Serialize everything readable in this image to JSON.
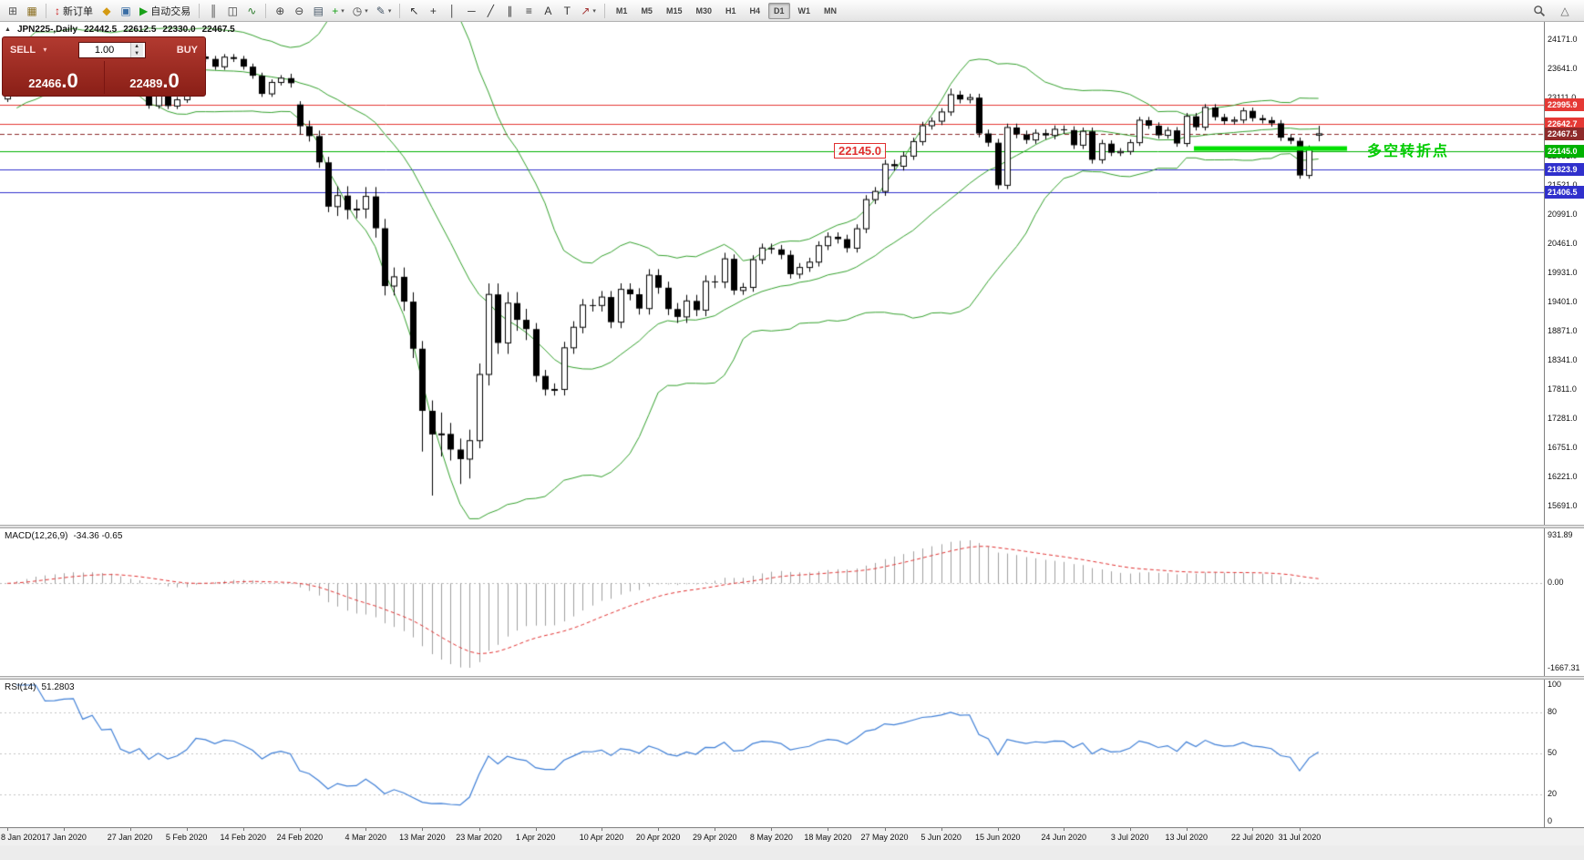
{
  "toolbar": {
    "groups": [
      {
        "items": [
          {
            "name": "new-chart-button",
            "glyph": "⊞",
            "color": "#555555"
          },
          {
            "name": "profiles-button",
            "glyph": "▦",
            "color": "#8a6d1f"
          }
        ]
      },
      {
        "items": [
          {
            "name": "new-order-button",
            "glyph": "↕",
            "color": "#cc2222",
            "label": "新订单"
          },
          {
            "name": "metaeditor-button",
            "glyph": "◆",
            "color": "#d49a12"
          },
          {
            "name": "terminal-button",
            "glyph": "▣",
            "color": "#3a6ea5"
          },
          {
            "name": "autotrading-button",
            "glyph": "▶",
            "color": "#18a018",
            "label": "自动交易"
          }
        ]
      },
      {
        "items": [
          {
            "name": "bar-chart-mode-button",
            "glyph": "║",
            "color": "#444444"
          },
          {
            "name": "candlestick-mode-button",
            "glyph": "◫",
            "color": "#444444"
          },
          {
            "name": "line-chart-mode-button",
            "glyph": "∿",
            "color": "#2a7a2a"
          }
        ]
      },
      {
        "items": [
          {
            "name": "zoom-in-button",
            "glyph": "⊕",
            "color": "#444444"
          },
          {
            "name": "zoom-out-button",
            "glyph": "⊖",
            "color": "#444444"
          },
          {
            "name": "tile-windows-button",
            "glyph": "▤",
            "color": "#445566"
          },
          {
            "name": "indicators-button",
            "glyph": "+",
            "color": "#18a018",
            "caret": true
          },
          {
            "name": "periods-button",
            "glyph": "◷",
            "color": "#444444",
            "caret": true
          },
          {
            "name": "templates-button",
            "glyph": "✎",
            "color": "#445566",
            "caret": true
          }
        ]
      },
      {
        "items": [
          {
            "name": "cursor-tool-button",
            "glyph": "↖",
            "color": "#333333"
          },
          {
            "name": "crosshair-tool-button",
            "glyph": "+",
            "color": "#333333"
          },
          {
            "name": "vertical-line-tool-button",
            "glyph": "│",
            "color": "#333333"
          },
          {
            "name": "horizontal-line-tool-button",
            "glyph": "─",
            "color": "#333333"
          },
          {
            "name": "trendline-tool-button",
            "glyph": "╱",
            "color": "#333333"
          },
          {
            "name": "channel-tool-button",
            "glyph": "∥",
            "color": "#333333"
          },
          {
            "name": "fibonacci-tool-button",
            "glyph": "≡",
            "color": "#333333"
          },
          {
            "name": "text-tool-button",
            "glyph": "A",
            "color": "#333333"
          },
          {
            "name": "label-tool-button",
            "glyph": "T",
            "color": "#333333"
          },
          {
            "name": "arrows-tool-button",
            "glyph": "↗",
            "color": "#a33333",
            "caret": true
          }
        ]
      }
    ],
    "timeframes": [
      "M1",
      "M5",
      "M15",
      "M30",
      "H1",
      "H4",
      "D1",
      "W1",
      "MN"
    ],
    "active_timeframe": "D1",
    "right": {
      "shift_glyph": "△"
    }
  },
  "chart": {
    "collapse_glyph": "▲",
    "title": {
      "symbol_period": "JPN225-,Daily",
      "open": "22442.5",
      "high": "22612.5",
      "low": "22330.0",
      "close": "22467.5"
    },
    "trade_panel": {
      "sell_label": "SELL",
      "buy_label": "BUY",
      "volume": "1.00",
      "caret": "▾",
      "spin_up": "▲",
      "spin_down": "▼",
      "sell_price_main": "22466",
      "sell_price_frac": ".0",
      "buy_price_main": "22489",
      "buy_price_frac": ".0"
    },
    "price_axis": [
      "24171.0",
      "23641.0",
      "23111.0",
      "22581.0",
      "22051.0",
      "21521.0",
      "20991.0",
      "20461.0",
      "19931.0",
      "19401.0",
      "18871.0",
      "18341.0",
      "17811.0",
      "17281.0",
      "16751.0",
      "16221.0",
      "15691.0"
    ],
    "price_axis_top": 24171,
    "price_axis_step": 530,
    "hlines": [
      {
        "name": "resistance-line-1",
        "price": 22995.9,
        "label": "22995.9",
        "color": "#e53935",
        "style": "solid"
      },
      {
        "name": "resistance-line-2",
        "price": 22642.7,
        "label": "22642.7",
        "color": "#e53935",
        "style": "solid"
      },
      {
        "name": "bid-price-line",
        "price": 22467.5,
        "label": "22467.5",
        "color": "#8e2a2a",
        "style": "dashed"
      },
      {
        "name": "pivot-level-line",
        "price": 22145.0,
        "label": "22145.0",
        "color": "#00b200",
        "style": "solid"
      },
      {
        "name": "support-line-1",
        "price": 21823.9,
        "label": "21823.9",
        "color": "#3030cc",
        "style": "solid"
      },
      {
        "name": "support-line-2",
        "price": 21406.5,
        "label": "21406.5",
        "color": "#3030cc",
        "style": "solid"
      }
    ],
    "pivot_segment": {
      "price": 22200,
      "color": "#00e000"
    },
    "annotations": {
      "price_note": "22145.0",
      "pivot_note": "多空转折点"
    },
    "indicators": {
      "bollinger_color": "#33a02c"
    },
    "x_axis": [
      {
        "t": "8 Jan 2020",
        "i": 0
      },
      {
        "t": "17 Jan 2020",
        "i": 6
      },
      {
        "t": "27 Jan 2020",
        "i": 13
      },
      {
        "t": "5 Feb 2020",
        "i": 19
      },
      {
        "t": "14 Feb 2020",
        "i": 25
      },
      {
        "t": "24 Feb 2020",
        "i": 31
      },
      {
        "t": "4 Mar 2020",
        "i": 38
      },
      {
        "t": "13 Mar 2020",
        "i": 44
      },
      {
        "t": "23 Mar 2020",
        "i": 50
      },
      {
        "t": "1 Apr 2020",
        "i": 56
      },
      {
        "t": "10 Apr 2020",
        "i": 63
      },
      {
        "t": "20 Apr 2020",
        "i": 69
      },
      {
        "t": "29 Apr 2020",
        "i": 75
      },
      {
        "t": "8 May 2020",
        "i": 81
      },
      {
        "t": "18 May 2020",
        "i": 87
      },
      {
        "t": "27 May 2020",
        "i": 93
      },
      {
        "t": "5 Jun 2020",
        "i": 99
      },
      {
        "t": "15 Jun 2020",
        "i": 105
      },
      {
        "t": "24 Jun 2020",
        "i": 112
      },
      {
        "t": "3 Jul 2020",
        "i": 119
      },
      {
        "t": "13 Jul 2020",
        "i": 125
      },
      {
        "t": "22 Jul 2020",
        "i": 132
      },
      {
        "t": "31 Jul 2020",
        "i": 137
      }
    ]
  },
  "macd": {
    "label": "MACD(12,26,9)",
    "values": "-34.36 -0.65",
    "axis": [
      "931.89",
      "0.00",
      "-1667.31"
    ],
    "range": {
      "max": 931.89,
      "min": -1667.31
    },
    "histogram_color": "#9f9f9f",
    "signal_color": "#e03030"
  },
  "rsi": {
    "label": "RSI(14)",
    "value": "51.2803",
    "axis": [
      {
        "v": 100,
        "t": "100"
      },
      {
        "v": 80,
        "t": "80"
      },
      {
        "v": 50,
        "t": "50"
      },
      {
        "v": 20,
        "t": "20"
      },
      {
        "v": 0,
        "t": "0"
      }
    ],
    "levels": [
      80,
      50,
      20
    ],
    "line_color": "#3f7fd6"
  },
  "chart_data": {
    "type": "candlestick",
    "symbol": "JPN225-",
    "period": "Daily",
    "indicators": [
      "Bollinger Bands(20,2)",
      "MACD(12,26,9)",
      "RSI(14)"
    ],
    "ohlc_current": {
      "open": 22442.5,
      "high": 22612.5,
      "low": 22330.0,
      "close": 22467.5
    },
    "candles": [
      [
        23100,
        23259,
        23045,
        23204
      ],
      [
        23204,
        23795,
        23149,
        23740
      ],
      [
        23740,
        23906,
        23685,
        23851
      ],
      [
        23851,
        24080,
        23796,
        24025
      ],
      [
        24025,
        24080,
        23862,
        23917
      ],
      [
        23917,
        23988,
        23862,
        23933
      ],
      [
        23933,
        24096,
        23878,
        24041
      ],
      [
        24041,
        24139,
        23986,
        24084
      ],
      [
        24084,
        24139,
        23809,
        23864
      ],
      [
        23864,
        24086,
        23809,
        24031
      ],
      [
        24031,
        24086,
        23740,
        23795
      ],
      [
        23795,
        23882,
        23740,
        23827
      ],
      [
        23827,
        23882,
        23289,
        23344
      ],
      [
        23344,
        23399,
        23161,
        23216
      ],
      [
        23216,
        23434,
        23161,
        23379
      ],
      [
        23379,
        23434,
        22923,
        22978
      ],
      [
        22978,
        23260,
        22923,
        23205
      ],
      [
        23205,
        23260,
        22917,
        22972
      ],
      [
        22972,
        23140,
        22917,
        23085
      ],
      [
        23085,
        23375,
        23030,
        23320
      ],
      [
        23320,
        23928,
        23265,
        23873
      ],
      [
        23873,
        23928,
        23773,
        23828
      ],
      [
        23828,
        23883,
        23631,
        23686
      ],
      [
        23686,
        23916,
        23631,
        23861
      ],
      [
        23861,
        23916,
        23773,
        23828
      ],
      [
        23828,
        23883,
        23633,
        23688
      ],
      [
        23688,
        23743,
        23468,
        23523
      ],
      [
        23523,
        23578,
        23138,
        23193
      ],
      [
        23193,
        23456,
        23138,
        23401
      ],
      [
        23401,
        23534,
        23346,
        23479
      ],
      [
        23479,
        23559,
        23307,
        23387
      ],
      [
        23000,
        23060,
        22455,
        22605
      ],
      [
        22605,
        22705,
        22326,
        22426
      ],
      [
        22426,
        22526,
        21848,
        21948
      ],
      [
        21948,
        22048,
        21043,
        21143
      ],
      [
        21143,
        21514,
        20973,
        21344
      ],
      [
        21344,
        21514,
        20913,
        21083
      ],
      [
        21083,
        21270,
        20930,
        21100
      ],
      [
        21100,
        21499,
        20930,
        21329
      ],
      [
        21329,
        21499,
        20580,
        20750
      ],
      [
        20750,
        20920,
        19529,
        19699
      ],
      [
        19699,
        20037,
        19529,
        19867
      ],
      [
        19867,
        20037,
        19246,
        19416
      ],
      [
        19416,
        19586,
        18390,
        18560
      ],
      [
        18560,
        18700,
        16690,
        17431
      ],
      [
        17431,
        17620,
        15890,
        17002
      ],
      [
        17002,
        17400,
        16600,
        17011
      ],
      [
        17011,
        17211,
        16527,
        16727
      ],
      [
        16727,
        16927,
        16100,
        16553
      ],
      [
        16553,
        17088,
        16200,
        16888
      ],
      [
        16888,
        18292,
        16750,
        18092
      ],
      [
        18092,
        19747,
        17892,
        19547
      ],
      [
        19547,
        19747,
        18465,
        18665
      ],
      [
        18665,
        19589,
        18465,
        19389
      ],
      [
        19389,
        19589,
        18885,
        19085
      ],
      [
        19085,
        19285,
        18717,
        18917
      ],
      [
        18917,
        19027,
        17955,
        18065
      ],
      [
        18065,
        18175,
        17708,
        17818
      ],
      [
        17818,
        17930,
        17708,
        17820
      ],
      [
        17820,
        18686,
        17710,
        18576
      ],
      [
        18576,
        19060,
        18466,
        18950
      ],
      [
        18950,
        19463,
        18840,
        19353
      ],
      [
        19353,
        19463,
        19236,
        19346
      ],
      [
        19346,
        19609,
        19236,
        19499
      ],
      [
        19499,
        19609,
        18933,
        19043
      ],
      [
        19043,
        19749,
        18933,
        19639
      ],
      [
        19639,
        19749,
        19440,
        19550
      ],
      [
        19550,
        19660,
        19180,
        19290
      ],
      [
        19290,
        20007,
        19180,
        19897
      ],
      [
        19897,
        20007,
        19559,
        19669
      ],
      [
        19669,
        19779,
        19171,
        19281
      ],
      [
        19281,
        19391,
        19028,
        19138
      ],
      [
        19138,
        19539,
        19028,
        19429
      ],
      [
        19429,
        19539,
        19152,
        19262
      ],
      [
        19262,
        19893,
        19152,
        19783
      ],
      [
        19783,
        19893,
        19661,
        19771
      ],
      [
        19771,
        20304,
        19661,
        20194
      ],
      [
        20194,
        20274,
        19539,
        19619
      ],
      [
        19619,
        19755,
        19539,
        19675
      ],
      [
        19675,
        20259,
        19595,
        20179
      ],
      [
        20179,
        20471,
        20099,
        20391
      ],
      [
        20391,
        20471,
        20286,
        20366
      ],
      [
        20366,
        20446,
        20187,
        20267
      ],
      [
        20267,
        20347,
        19835,
        19915
      ],
      [
        19915,
        20117,
        19835,
        20037
      ],
      [
        20037,
        20214,
        19957,
        20134
      ],
      [
        20134,
        20513,
        20054,
        20433
      ],
      [
        20433,
        20675,
        20353,
        20595
      ],
      [
        20595,
        20675,
        20472,
        20552
      ],
      [
        20552,
        20632,
        20308,
        20388
      ],
      [
        20388,
        20821,
        20308,
        20741
      ],
      [
        20741,
        21351,
        20661,
        21271
      ],
      [
        21271,
        21499,
        21191,
        21419
      ],
      [
        21419,
        21996,
        21339,
        21916
      ],
      [
        21916,
        21996,
        21798,
        21878
      ],
      [
        21878,
        22142,
        21798,
        22062
      ],
      [
        22062,
        22396,
        21992,
        22326
      ],
      [
        22326,
        22684,
        22256,
        22614
      ],
      [
        22614,
        22766,
        22544,
        22696
      ],
      [
        22696,
        22934,
        22626,
        22864
      ],
      [
        22864,
        23290,
        22794,
        23178
      ],
      [
        23178,
        23248,
        23021,
        23091
      ],
      [
        23091,
        23195,
        23021,
        23125
      ],
      [
        23125,
        23195,
        22403,
        22473
      ],
      [
        22473,
        22543,
        22235,
        22305
      ],
      [
        22305,
        22375,
        21461,
        21531
      ],
      [
        21531,
        22652,
        21461,
        22582
      ],
      [
        22582,
        22652,
        22386,
        22456
      ],
      [
        22456,
        22526,
        22285,
        22355
      ],
      [
        22355,
        22549,
        22285,
        22479
      ],
      [
        22479,
        22549,
        22367,
        22437
      ],
      [
        22437,
        22619,
        22367,
        22549
      ],
      [
        22549,
        22619,
        22464,
        22534
      ],
      [
        22534,
        22604,
        22190,
        22260
      ],
      [
        22260,
        22582,
        22190,
        22512
      ],
      [
        22512,
        22582,
        21925,
        21995
      ],
      [
        21995,
        22358,
        21925,
        22288
      ],
      [
        22288,
        22348,
        22062,
        22122
      ],
      [
        22122,
        22206,
        22062,
        22146
      ],
      [
        22146,
        22366,
        22086,
        22306
      ],
      [
        22306,
        22774,
        22246,
        22714
      ],
      [
        22714,
        22774,
        22555,
        22615
      ],
      [
        22615,
        22675,
        22379,
        22439
      ],
      [
        22439,
        22589,
        22379,
        22529
      ],
      [
        22529,
        22589,
        22231,
        22291
      ],
      [
        22291,
        22845,
        22231,
        22785
      ],
      [
        22785,
        22845,
        22527,
        22587
      ],
      [
        22587,
        23006,
        22527,
        22946
      ],
      [
        22946,
        23006,
        22710,
        22770
      ],
      [
        22770,
        22830,
        22636,
        22696
      ],
      [
        22696,
        22777,
        22636,
        22717
      ],
      [
        22717,
        22944,
        22657,
        22884
      ],
      [
        22884,
        22944,
        22691,
        22751
      ],
      [
        22751,
        22811,
        22655,
        22715
      ],
      [
        22715,
        22775,
        22597,
        22657
      ],
      [
        22657,
        22717,
        22337,
        22397
      ],
      [
        22397,
        22457,
        22279,
        22339
      ],
      [
        22339,
        22399,
        21650,
        21710
      ],
      [
        21710,
        22255,
        21650,
        22195
      ],
      [
        22442.5,
        22612.5,
        22330.0,
        22467.5
      ]
    ]
  }
}
